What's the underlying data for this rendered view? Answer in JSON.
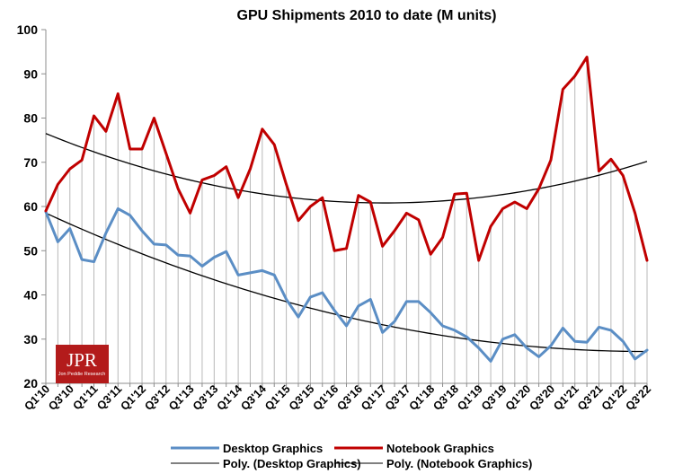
{
  "chart_data": {
    "type": "line",
    "title": "GPU Shipments 2010 to date (M units)",
    "xlabel": "",
    "ylabel": "",
    "ylim": [
      20,
      100
    ],
    "yticks": [
      20,
      30,
      40,
      50,
      60,
      70,
      80,
      90,
      100
    ],
    "x": [
      "Q1'10",
      "Q2'10",
      "Q3'10",
      "Q4'10",
      "Q1'11",
      "Q2'11",
      "Q3'11",
      "Q4'11",
      "Q1'12",
      "Q2'12",
      "Q3'12",
      "Q4'12",
      "Q1'13",
      "Q2'13",
      "Q3'13",
      "Q4'13",
      "Q1'14",
      "Q2'14",
      "Q3'14",
      "Q4'14",
      "Q1'15",
      "Q2'15",
      "Q3'15",
      "Q4'15",
      "Q1'16",
      "Q2'16",
      "Q3'16",
      "Q4'16",
      "Q1'17",
      "Q2'17",
      "Q3'17",
      "Q4'17",
      "Q1'18",
      "Q2'18",
      "Q3'18",
      "Q4'18",
      "Q1'19",
      "Q2'19",
      "Q3'19",
      "Q4'19",
      "Q1'20",
      "Q2'20",
      "Q3'20",
      "Q4'20",
      "Q1'21",
      "Q2'21",
      "Q3'21",
      "Q4'21",
      "Q1'22",
      "Q2'22",
      "Q3'22"
    ],
    "x_labeled": [
      "Q1'10",
      "Q3'10",
      "Q1'11",
      "Q3'11",
      "Q1'12",
      "Q3'12",
      "Q1'13",
      "Q3'13",
      "Q1'14",
      "Q3'14",
      "Q1'15",
      "Q3'15",
      "Q1'16",
      "Q3'16",
      "Q1'17",
      "Q3'17",
      "Q1'18",
      "Q3'18",
      "Q1'19",
      "Q3'19",
      "Q1'20",
      "Q3'20",
      "Q1'21",
      "Q3'21",
      "Q1'22",
      "Q3'22"
    ],
    "series": [
      {
        "name": "Desktop Graphics",
        "color": "#5b8ec5",
        "values": [
          58.8,
          52,
          55,
          48,
          47.5,
          54,
          59.5,
          58,
          54.5,
          51.5,
          51.3,
          49,
          48.8,
          46.5,
          48.5,
          49.8,
          44.5,
          45,
          45.5,
          44.5,
          39,
          35,
          39.5,
          40.5,
          36.5,
          33,
          37.5,
          39,
          31.5,
          34,
          38.5,
          38.5,
          36,
          33,
          32,
          30.5,
          28,
          25,
          30,
          31,
          28,
          26,
          28.5,
          32.5,
          29.5,
          29.3,
          32.7,
          32,
          29.5,
          25.5,
          27.5
        ]
      },
      {
        "name": "Notebook Graphics",
        "color": "#c00000",
        "values": [
          59,
          65,
          68.5,
          70.5,
          80.5,
          77,
          85.5,
          73,
          73,
          80,
          72,
          64,
          58.5,
          66,
          67,
          69,
          62,
          68.5,
          77.5,
          74,
          65,
          56.8,
          60,
          62,
          50,
          50.5,
          62.5,
          61,
          51,
          54.5,
          58.5,
          57,
          49.2,
          53,
          62.8,
          63,
          47.8,
          55.5,
          59.5,
          61,
          59.5,
          64,
          70.5,
          86.5,
          89.5,
          93.8,
          68,
          70.7,
          67,
          58.5,
          47.8
        ]
      }
    ],
    "trendlines": [
      {
        "name": "Poly. (Desktop Graphics)",
        "type": "polynomial",
        "color": "#000000",
        "start": 58.5,
        "min": 27.2,
        "end": 27.2
      },
      {
        "name": "Poly. (Notebook Graphics)",
        "type": "polynomial",
        "color": "#000000",
        "start": 76.5,
        "min": 60.8,
        "end": 70.2
      }
    ],
    "grid": false,
    "drop_lines": true,
    "legend_position": "bottom"
  },
  "logo": {
    "main": "JPR",
    "sub": "Jon Peddie Research",
    "bg_color": "#b31b1b"
  }
}
